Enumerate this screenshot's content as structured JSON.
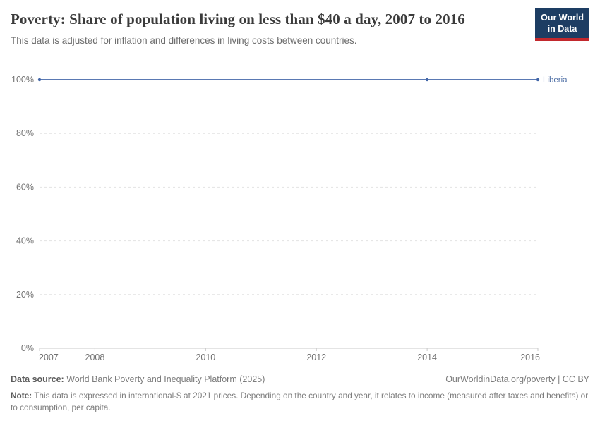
{
  "header": {
    "title": "Poverty: Share of population living on less than $40 a day, 2007 to 2016",
    "subtitle": "This data is adjusted for inflation and differences in living costs between countries.",
    "logo_line1": "Our World",
    "logo_line2": "in Data"
  },
  "chart_data": {
    "type": "line",
    "title": "Poverty: Share of population living on less than $40 a day, 2007 to 2016",
    "series": [
      {
        "name": "Liberia",
        "color": "#4266a8",
        "x": [
          2007,
          2014,
          2016
        ],
        "values": [
          100,
          100,
          100
        ],
        "markers_at": [
          2007,
          2014,
          2016
        ]
      }
    ],
    "xlabel": "",
    "ylabel": "",
    "xlim": [
      2007,
      2016
    ],
    "ylim": [
      0,
      100
    ],
    "xticks": [
      2007,
      2008,
      2010,
      2012,
      2014,
      2016
    ],
    "xtick_labels": [
      "2007",
      "2008",
      "2010",
      "2012",
      "2014",
      "2016"
    ],
    "yticks": [
      0,
      20,
      40,
      60,
      80,
      100
    ],
    "ytick_labels": [
      "0%",
      "20%",
      "40%",
      "60%",
      "80%",
      "100%"
    ],
    "grid": "horizontal-dashed",
    "legend_position": "right-of-line-end"
  },
  "colors": {
    "grid": "#e2e2e2",
    "axis": "#c8c8c8",
    "tick_text": "#737373",
    "series_label": "#4e6fa5",
    "logo_bg": "#1d3d63",
    "logo_stripe": "#c2282d"
  },
  "footer": {
    "datasource_label": "Data source:",
    "datasource_value": " World Bank Poverty and Inequality Platform (2025)",
    "link": "OurWorldinData.org/poverty | CC BY",
    "note_label": "Note:",
    "note_value": " This data is expressed in international-$ at 2021 prices. Depending on the country and year, it relates to income (measured after taxes and benefits) or to consumption, per capita."
  }
}
